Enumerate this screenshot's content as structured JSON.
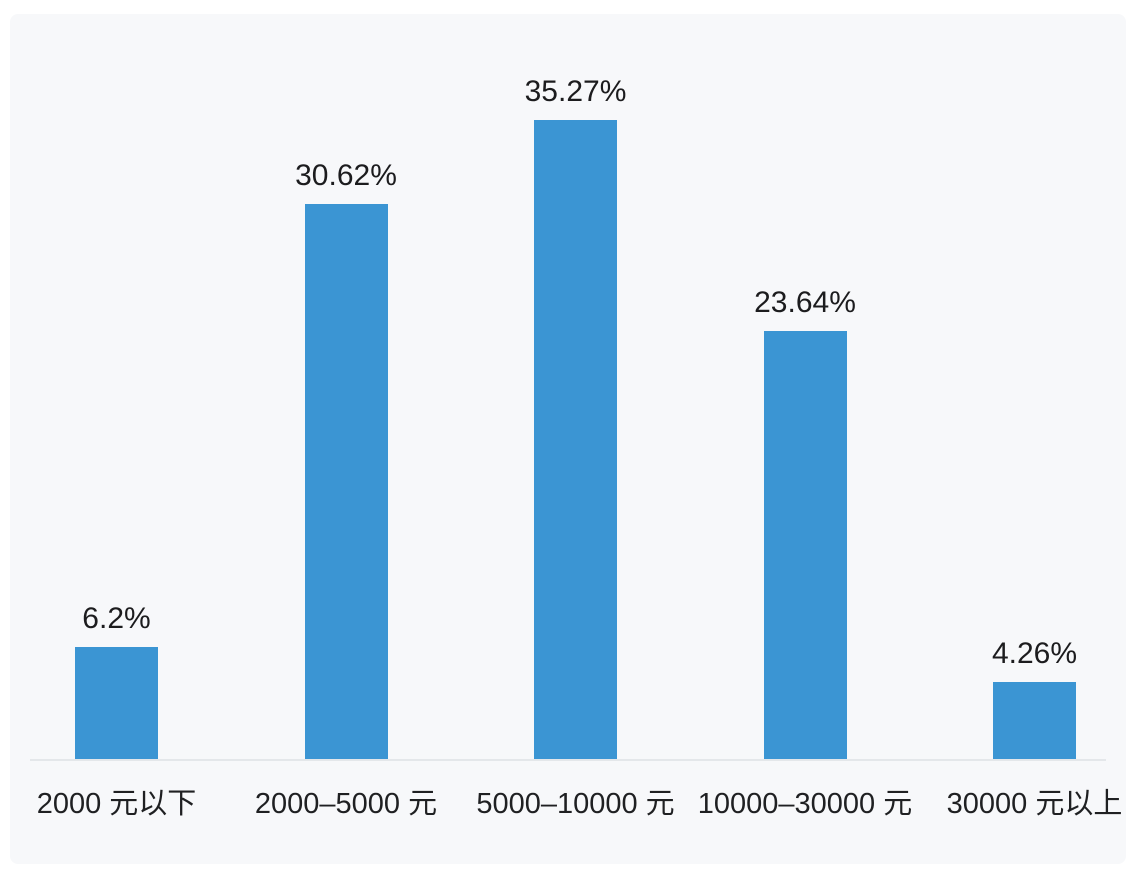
{
  "chart_data": {
    "type": "bar",
    "title": "",
    "xlabel": "",
    "ylabel": "",
    "categories": [
      "2000 元以下",
      "2000–5000 元",
      "5000–10000 元",
      "10000–30000 元",
      "30000 元以上"
    ],
    "values": [
      6.2,
      30.62,
      35.27,
      23.64,
      4.26
    ],
    "value_labels": [
      "6.2%",
      "30.62%",
      "35.27%",
      "23.64%",
      "4.26%"
    ],
    "ylim": [
      0,
      40
    ],
    "grid": false,
    "legend_position": "none",
    "bar_color": "#3b95d3",
    "panel_background": "#f7f8fa",
    "label_text_color": "#1c1c1e"
  }
}
